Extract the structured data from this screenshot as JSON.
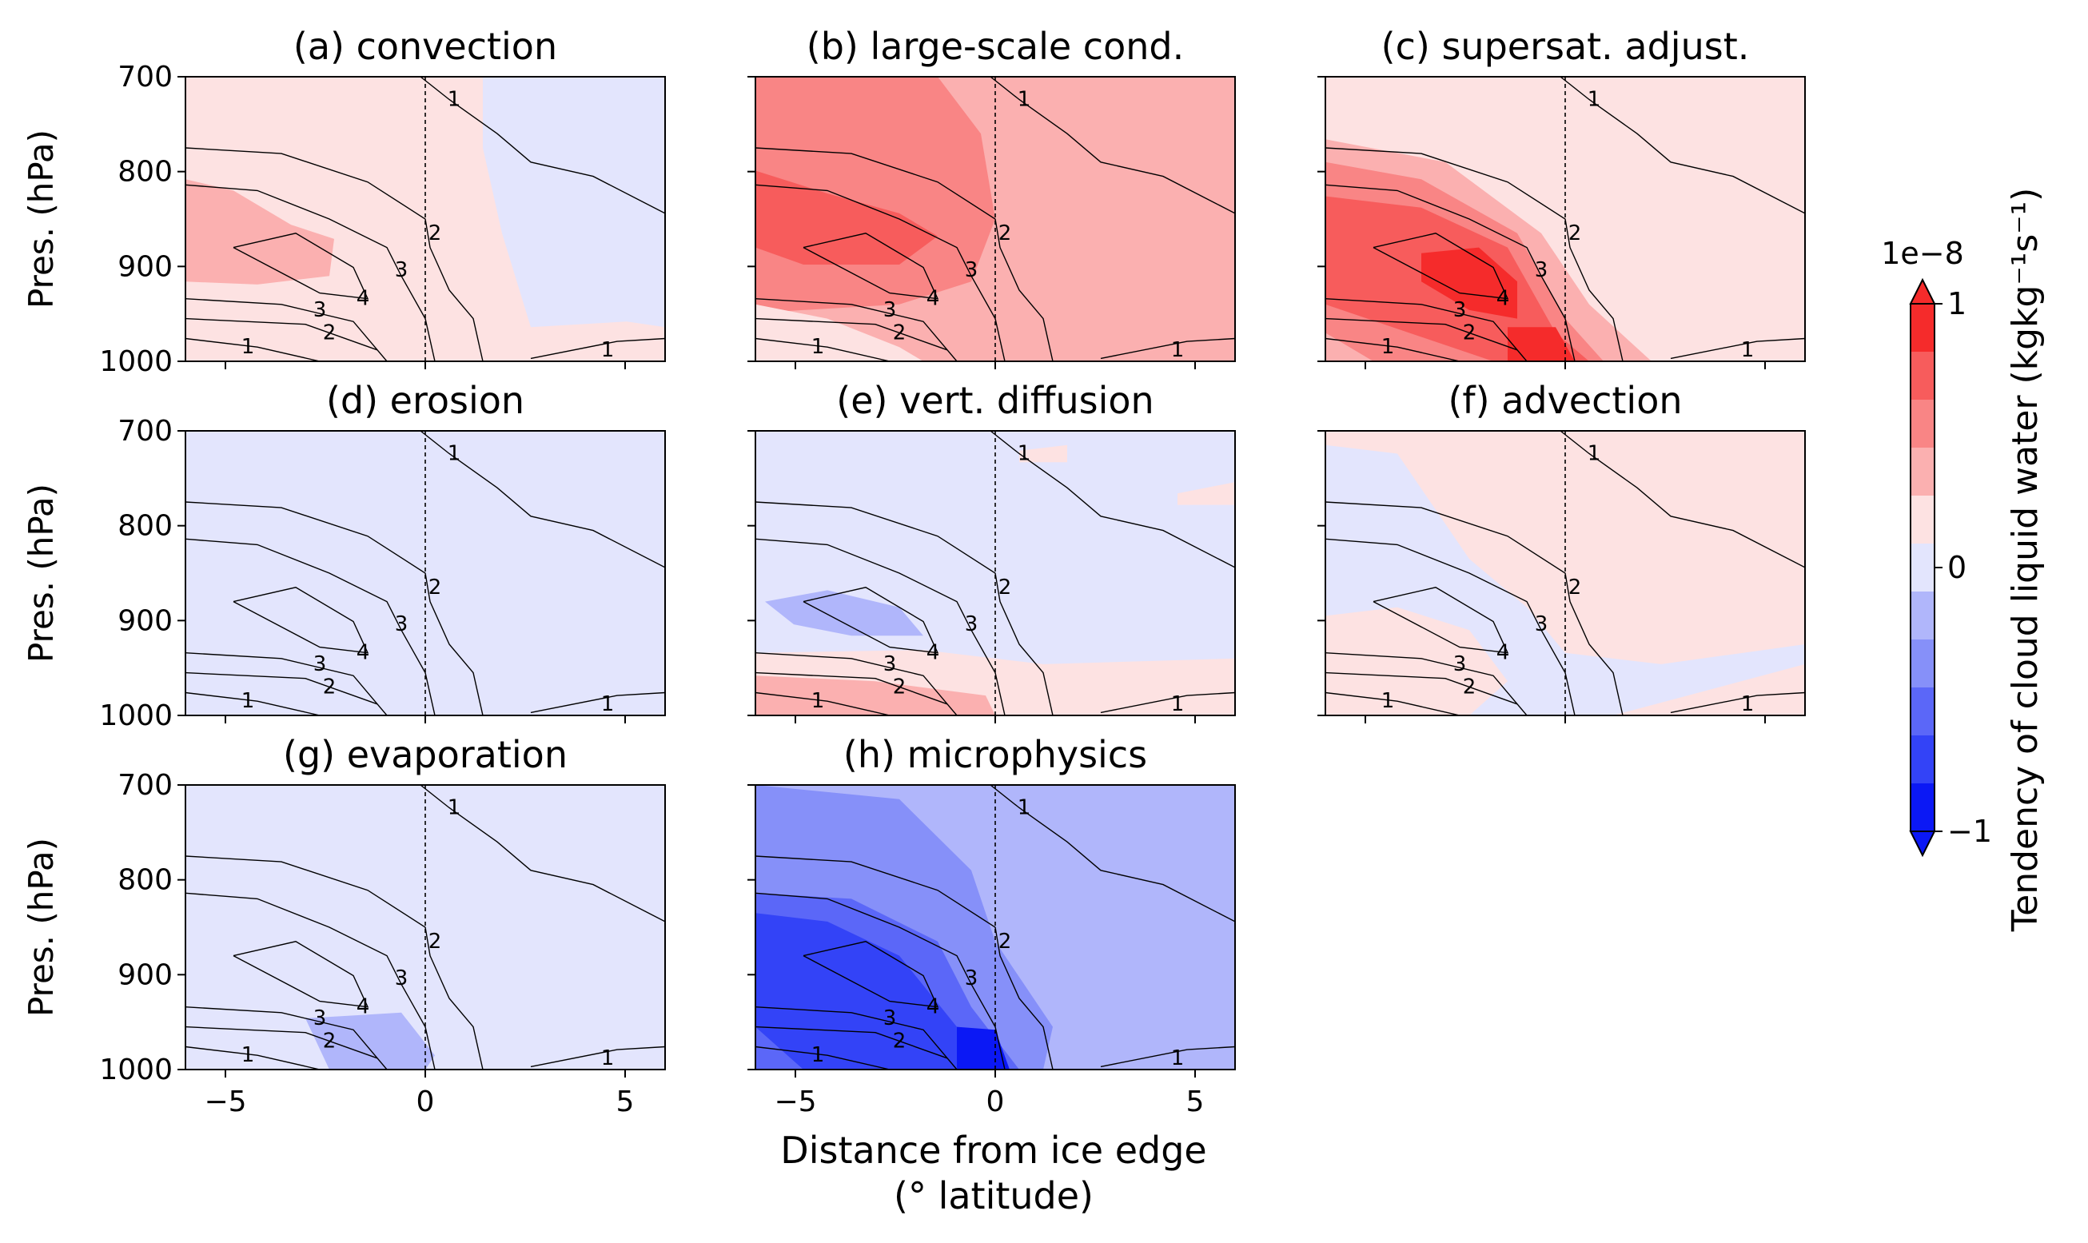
{
  "chart_data": {
    "type": "heatmap",
    "suptitle": "",
    "xlabel": "Distance from ice edge\n(° latitude)",
    "ylabel": "Pres. (hPa)",
    "xlim": [
      -6,
      6
    ],
    "ylim": [
      1000,
      700
    ],
    "xticks": [
      -5,
      0,
      5
    ],
    "yticks": [
      700,
      800,
      900,
      1000
    ],
    "xtick_labels": [
      "−5",
      "0",
      "5"
    ],
    "ytick_labels": [
      "700",
      "800",
      "900",
      "1000"
    ],
    "colorbar": {
      "label": "Tendency of cloud liquid water (kgkg⁻¹s⁻¹)",
      "scale_label": "1e−8",
      "min": -1,
      "max": 1,
      "ticks": [
        -1,
        0,
        1
      ],
      "tick_labels": [
        "−1",
        "0",
        "1"
      ],
      "levels": 10,
      "colors": [
        "#0b18f5",
        "#3343f7",
        "#5b67f8",
        "#8690f9",
        "#b0b6fb",
        "#e3e5fd",
        "#fde2e2",
        "#fbb0b0",
        "#f98585",
        "#f75c5c",
        "#f52b2b"
      ]
    },
    "ice_edge_line": 0,
    "contour_labels": [
      "1",
      "2",
      "3",
      "4",
      "3",
      "2",
      "1",
      "1"
    ],
    "panels": [
      {
        "title": "(a) convection",
        "tendency_level": "weak positive (0 to 0.2) broadly; 0.2–0.4 near -5°, 880 hPa; weak negative east of 1° above 950 hPa"
      },
      {
        "title": "(b) large-scale cond.",
        "tendency_level": "positive 0.2–0.6 throughout; max ~0.6 near -4°, 880 hPa"
      },
      {
        "title": "(c) supersat. adjust.",
        "tendency_level": "positive up to ~0.9 near -3°, 900 hPa and near 0°, 1000 hPa"
      },
      {
        "title": "(d) erosion",
        "tendency_level": "weak negative (-0.2 to 0) everywhere"
      },
      {
        "title": "(e) vert. diffusion",
        "tendency_level": "negative ~-0.3 near -3°, 890 hPa; positive 0.2–0.4 near surface west of 0°"
      },
      {
        "title": "(f) advection",
        "tendency_level": "weak positive over ice (east) and near surface west; weak negative west mid-levels"
      },
      {
        "title": "(g) evaporation",
        "tendency_level": "weak negative everywhere; ~-0.3 near -1°, 980 hPa"
      },
      {
        "title": "(h) microphysics",
        "tendency_level": "negative -0.2 to -0.9; strongest near -4°, 900 hPa and near 0°, 1000 hPa"
      }
    ]
  }
}
